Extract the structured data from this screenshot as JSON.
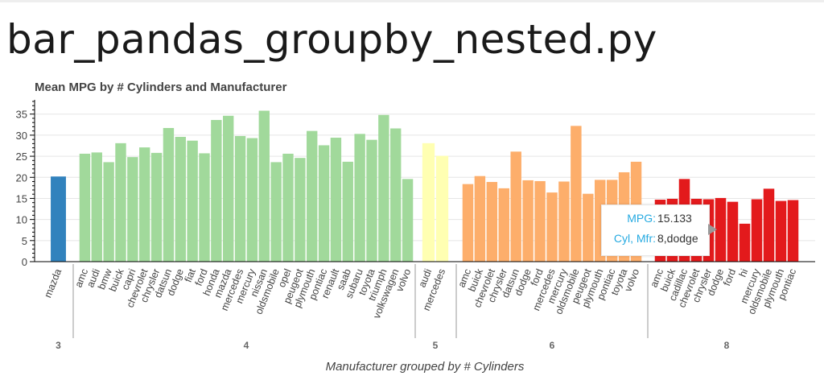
{
  "page": {
    "title": "bar_pandas_groupby_nested.py"
  },
  "chart_data": {
    "type": "bar",
    "title": "Mean MPG by # Cylinders and Manufacturer",
    "xlabel": "Manufacturer grouped by # Cylinders",
    "ylabel": "",
    "ylim": [
      0,
      38
    ],
    "yticks": [
      0,
      5,
      10,
      15,
      20,
      25,
      30,
      35
    ],
    "grid": "horizontal",
    "groups": [
      {
        "label": "3",
        "color": "#3182bd",
        "categories": [
          "mazda"
        ],
        "values": [
          20.2
        ]
      },
      {
        "label": "4",
        "color": "#a1d99b",
        "categories": [
          "amc",
          "audi",
          "bmw",
          "buick",
          "capri",
          "chevrolet",
          "chrysler",
          "datsun",
          "dodge",
          "fiat",
          "ford",
          "honda",
          "mazda",
          "mercedes",
          "mercury",
          "nissan",
          "oldsmobile",
          "opel",
          "peugeot",
          "plymouth",
          "pontiac",
          "renault",
          "saab",
          "subaru",
          "toyota",
          "triumph",
          "volkswagen",
          "volvo"
        ],
        "values": [
          25.6,
          25.9,
          23.6,
          28.1,
          24.8,
          27.1,
          25.8,
          31.7,
          29.6,
          28.7,
          25.7,
          33.6,
          34.6,
          29.8,
          29.3,
          35.8,
          23.6,
          25.6,
          24.6,
          31.0,
          27.6,
          29.4,
          23.7,
          30.3,
          28.9,
          34.8,
          31.6,
          19.6
        ]
      },
      {
        "label": "5",
        "color": "#ffffb2",
        "categories": [
          "audi",
          "mercedes"
        ],
        "values": [
          28.1,
          25.1
        ]
      },
      {
        "label": "6",
        "color": "#fdae6b",
        "categories": [
          "amc",
          "buick",
          "chevrolet",
          "chrysler",
          "datsun",
          "dodge",
          "ford",
          "mercedes",
          "mercury",
          "oldsmobile",
          "peugeot",
          "plymouth",
          "pontiac",
          "toyota",
          "volvo"
        ],
        "values": [
          18.4,
          20.3,
          18.9,
          17.4,
          26.1,
          19.3,
          19.1,
          16.4,
          19.0,
          32.2,
          16.1,
          19.4,
          19.4,
          21.2,
          23.7
        ]
      },
      {
        "label": "8",
        "color": "#e31a1c",
        "categories": [
          "amc",
          "buick",
          "cadillac",
          "chevrolet",
          "chrysler",
          "dodge",
          "ford",
          "hi",
          "mercury",
          "oldsmobile",
          "plymouth",
          "pontiac"
        ],
        "values": [
          14.7,
          14.9,
          19.6,
          14.9,
          14.8,
          15.1,
          14.2,
          9.0,
          14.8,
          17.3,
          14.4,
          14.6
        ]
      }
    ],
    "tooltip": {
      "mpg_label": "MPG:",
      "mpg_value": "15.133",
      "group_label": "Cyl, Mfr:",
      "group_value": "8,dodge"
    }
  }
}
